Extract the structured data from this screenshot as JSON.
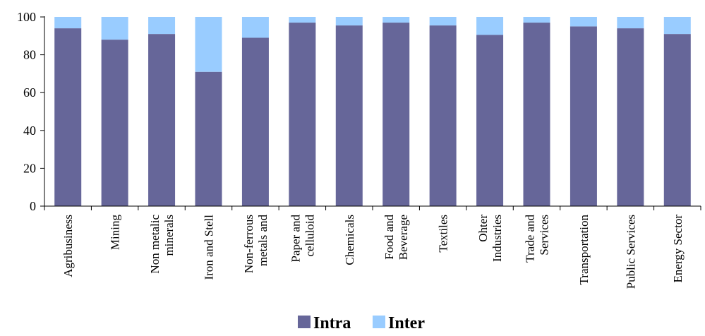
{
  "chart_data": {
    "type": "bar",
    "stacked": true,
    "categories": [
      [
        "Agribusiness"
      ],
      [
        "Mining"
      ],
      [
        "Non metalic",
        "minerals"
      ],
      [
        "Iron and Stell"
      ],
      [
        "Non-ferrous",
        "metals and"
      ],
      [
        "Paper and",
        "celluloid"
      ],
      [
        "Chemicals"
      ],
      [
        "Food and",
        "Beverage"
      ],
      [
        "Textiles"
      ],
      [
        "Ohter",
        "Industries"
      ],
      [
        "Trade and",
        "Services"
      ],
      [
        "Transportation"
      ],
      [
        "Public Services"
      ],
      [
        "Energy Sector"
      ]
    ],
    "series": [
      {
        "name": "Intra",
        "color": "#666699",
        "values": [
          94,
          88,
          91,
          71,
          89,
          97,
          95.5,
          97,
          95.5,
          90.5,
          97,
          95,
          94,
          91
        ]
      },
      {
        "name": "Inter",
        "color": "#99ccff",
        "values": [
          6,
          12,
          9,
          29,
          11,
          3,
          4.5,
          3,
          4.5,
          9.5,
          3,
          5,
          6,
          9
        ]
      }
    ],
    "yticks": [
      0,
      20,
      40,
      60,
      80,
      100
    ],
    "ylim": [
      0,
      100
    ],
    "grid": false,
    "legend": "bottom-center",
    "category_label_orientation": "vertical"
  }
}
